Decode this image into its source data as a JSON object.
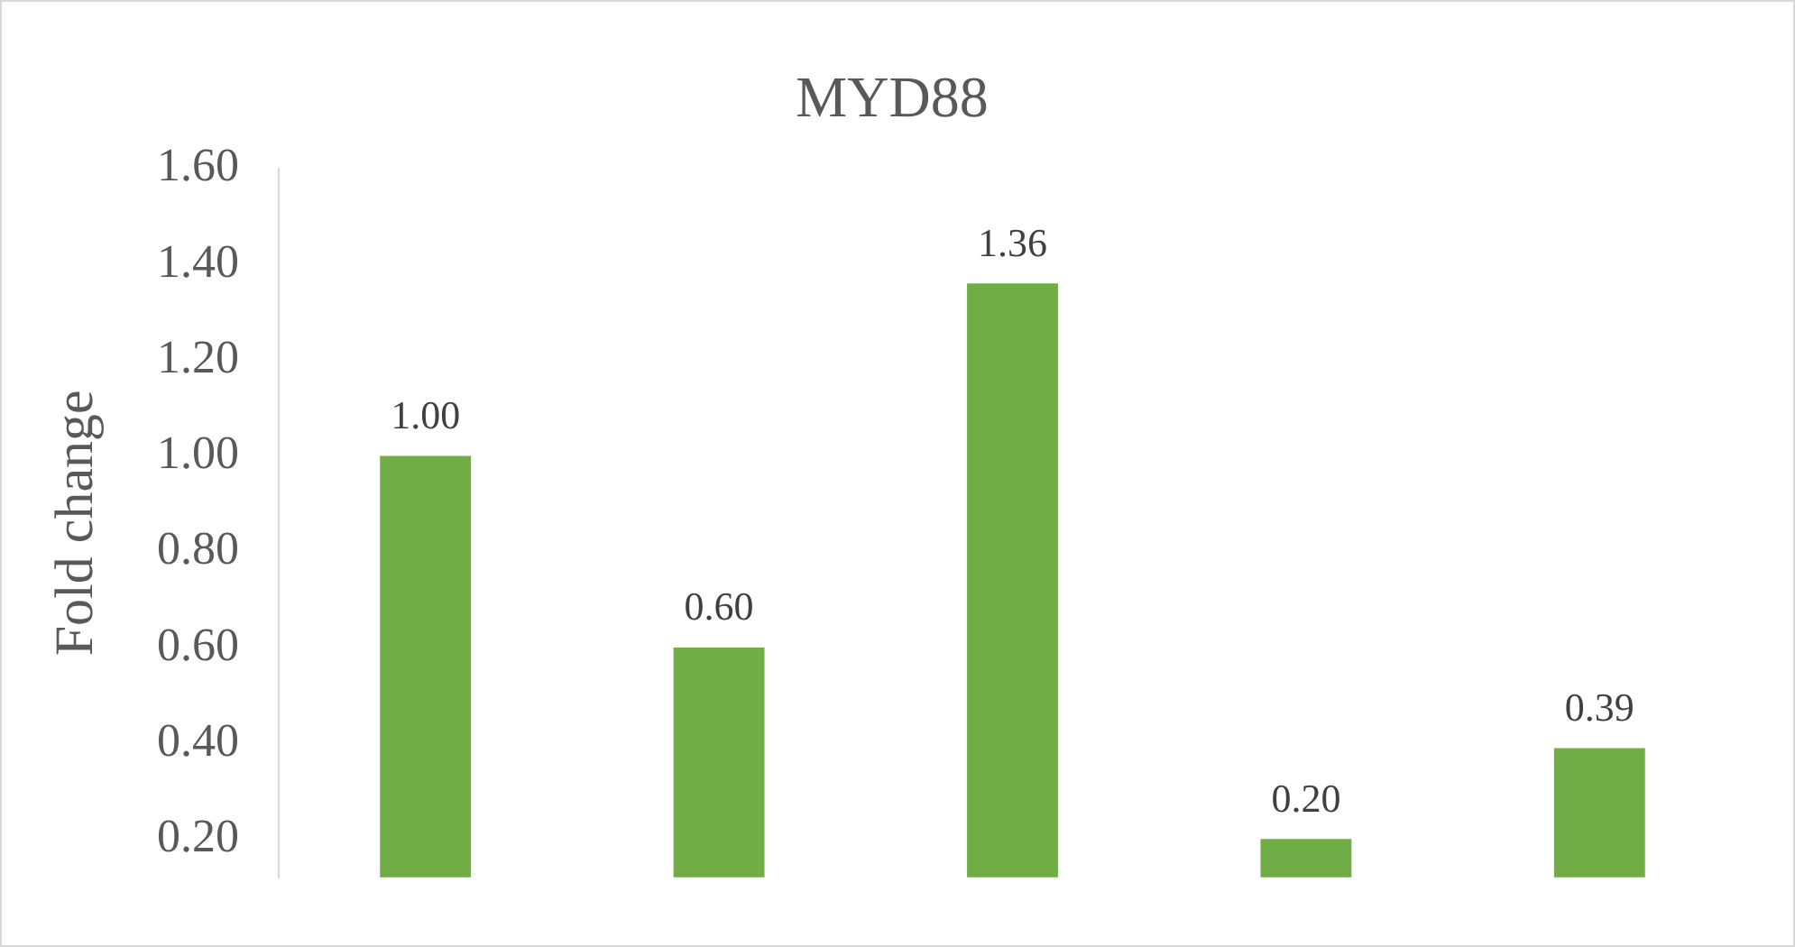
{
  "chart_data": {
    "type": "bar",
    "title": "MYD88",
    "ylabel": "Fold change",
    "categories": [
      null,
      null,
      null,
      null,
      null
    ],
    "values": [
      1.0,
      0.6,
      1.36,
      0.2,
      0.39
    ],
    "color": "#70ad47",
    "value_labels": [
      "1.00",
      "0.60",
      "1.36",
      "0.20",
      "0.39"
    ],
    "ylim": [
      0.12,
      1.6
    ],
    "yticks": [
      {
        "value": 0.2,
        "label": "0.20"
      },
      {
        "value": 0.4,
        "label": "0.40"
      },
      {
        "value": 0.6,
        "label": "0.60"
      },
      {
        "value": 0.8,
        "label": "0.80"
      },
      {
        "value": 1.0,
        "label": "1.00"
      },
      {
        "value": 1.2,
        "label": "1.20"
      },
      {
        "value": 1.4,
        "label": "1.40"
      },
      {
        "value": 1.6,
        "label": "1.60"
      }
    ],
    "grid": false,
    "legend": false
  }
}
